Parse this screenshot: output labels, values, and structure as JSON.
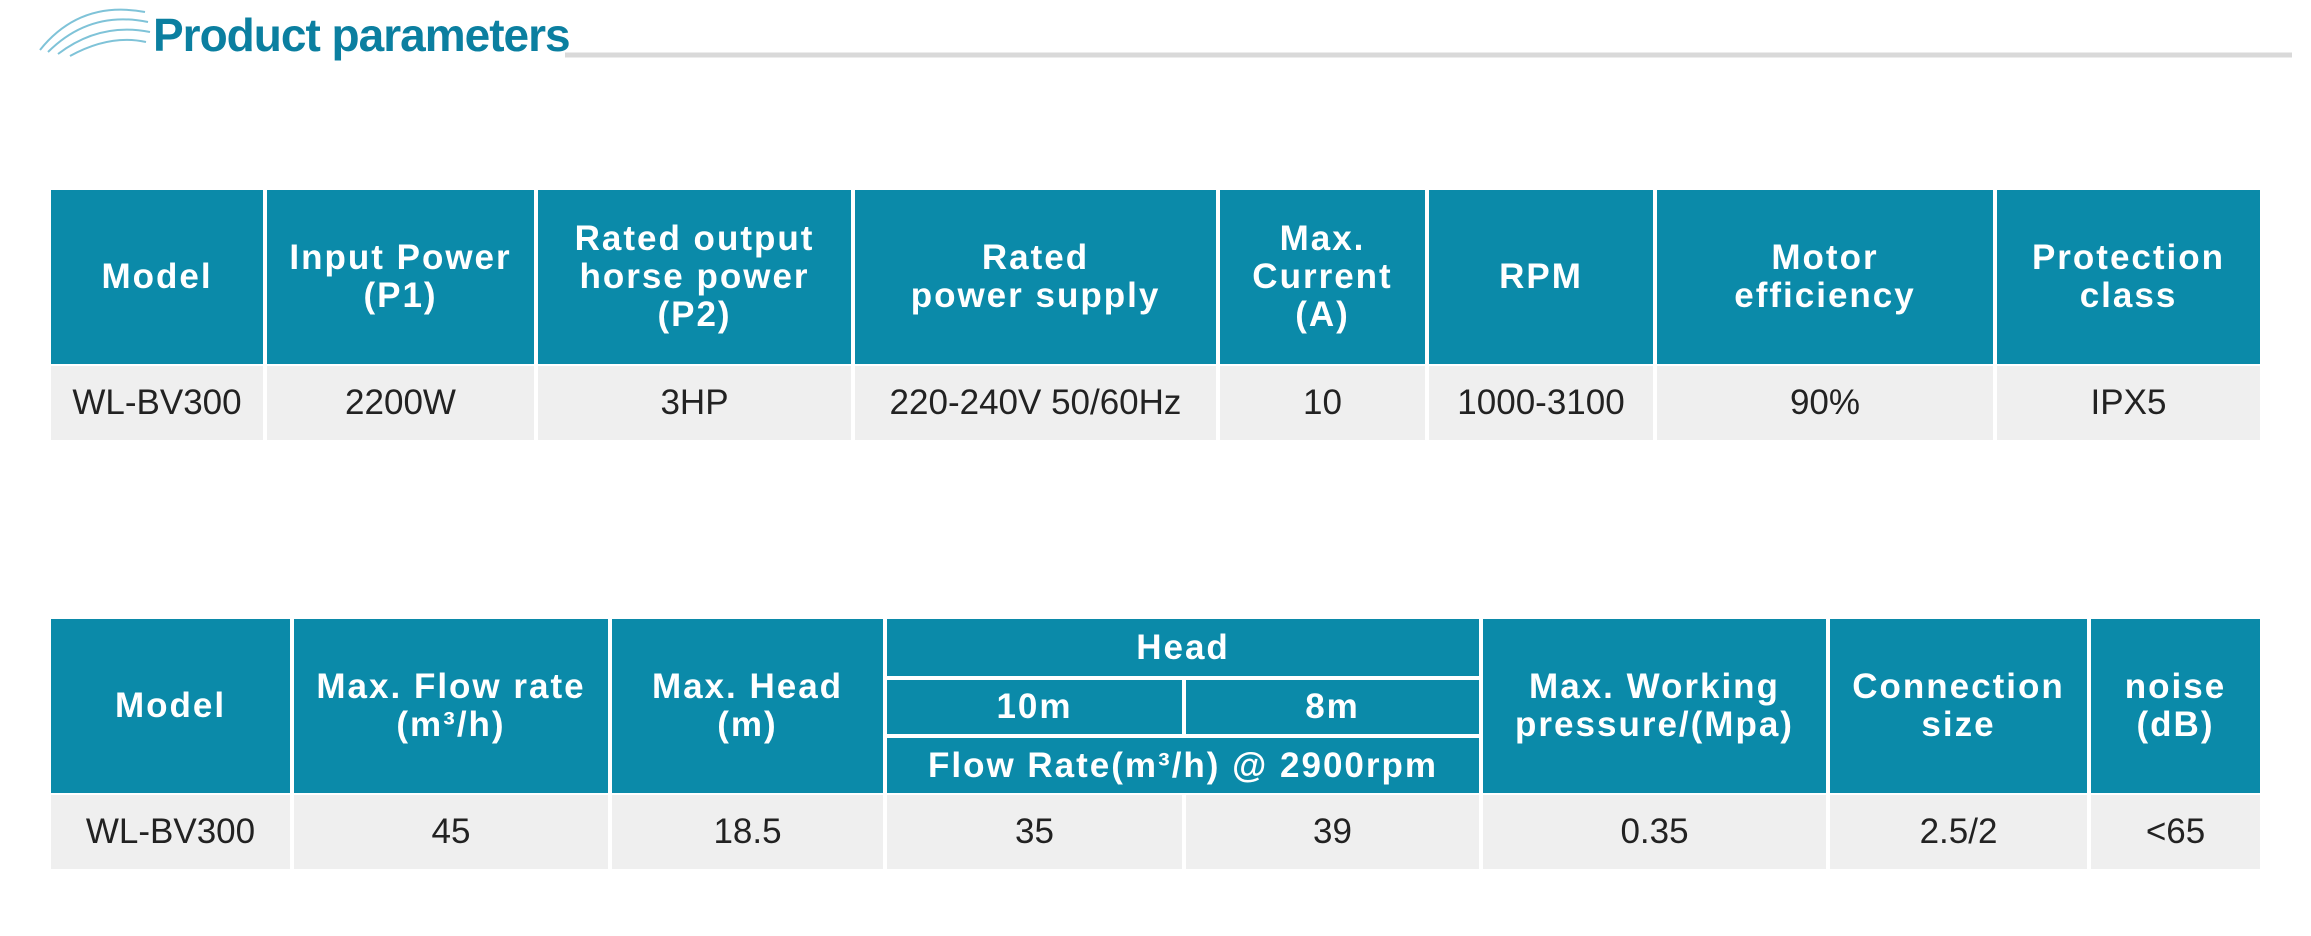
{
  "header": {
    "title": "Product parameters"
  },
  "table1": {
    "columns": [
      [
        "Model"
      ],
      [
        "Input  Power",
        "(P1)"
      ],
      [
        "Rated output",
        "horse power",
        "(P2)"
      ],
      [
        "Rated",
        "power  supply"
      ],
      [
        "Max.",
        "Current",
        "(A)"
      ],
      [
        "RPM"
      ],
      [
        "Motor",
        "efficiency"
      ],
      [
        "Protection",
        "class"
      ]
    ],
    "rows": [
      [
        "WL-BV300",
        "2200W",
        "3HP",
        "220-240V 50/60Hz",
        "10",
        "1000-3100",
        "90%",
        "IPX5"
      ]
    ]
  },
  "table2": {
    "columns": [
      [
        "Model"
      ],
      [
        "Max. Flow rate",
        "(m³/h)"
      ],
      [
        "Max. Head",
        "(m)"
      ],
      [
        "10m"
      ],
      [
        "8m"
      ],
      [
        "Max. Working",
        "pressure/(Mpa)"
      ],
      [
        "Connection",
        "size"
      ],
      [
        "noise",
        "(dB)"
      ]
    ],
    "group": "Head",
    "group_note": "Flow Rate(m³/h) @ 2900rpm",
    "rows": [
      [
        "WL-BV300",
        "45",
        "18.5",
        "35",
        "39",
        "0.35",
        "2.5/2",
        "<65"
      ]
    ]
  }
}
